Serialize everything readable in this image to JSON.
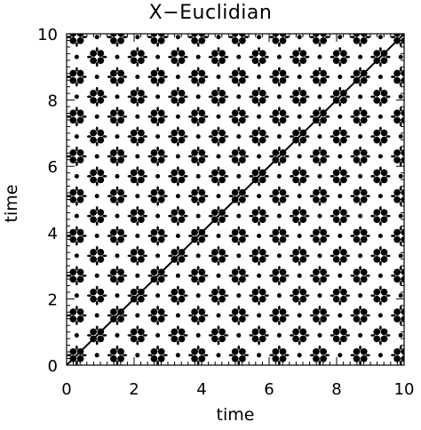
{
  "chart_data": {
    "type": "heatmap",
    "title": "X−Euclidian",
    "xlabel": "time",
    "ylabel": "time",
    "xlim": [
      0,
      10
    ],
    "ylim": [
      0,
      10
    ],
    "x_ticks": [
      "0",
      "2",
      "4",
      "6",
      "8",
      "10"
    ],
    "y_ticks": [
      "0",
      "2",
      "4",
      "6",
      "8",
      "10"
    ],
    "colormap": [
      "#ffffff",
      "#000000"
    ],
    "pattern": "binary recurrence plot with square lattice of blobs",
    "lattice_period": 0.6,
    "lattice_offset": [
      0.3,
      0.3
    ],
    "blob_radius": 0.12,
    "grid": false
  }
}
